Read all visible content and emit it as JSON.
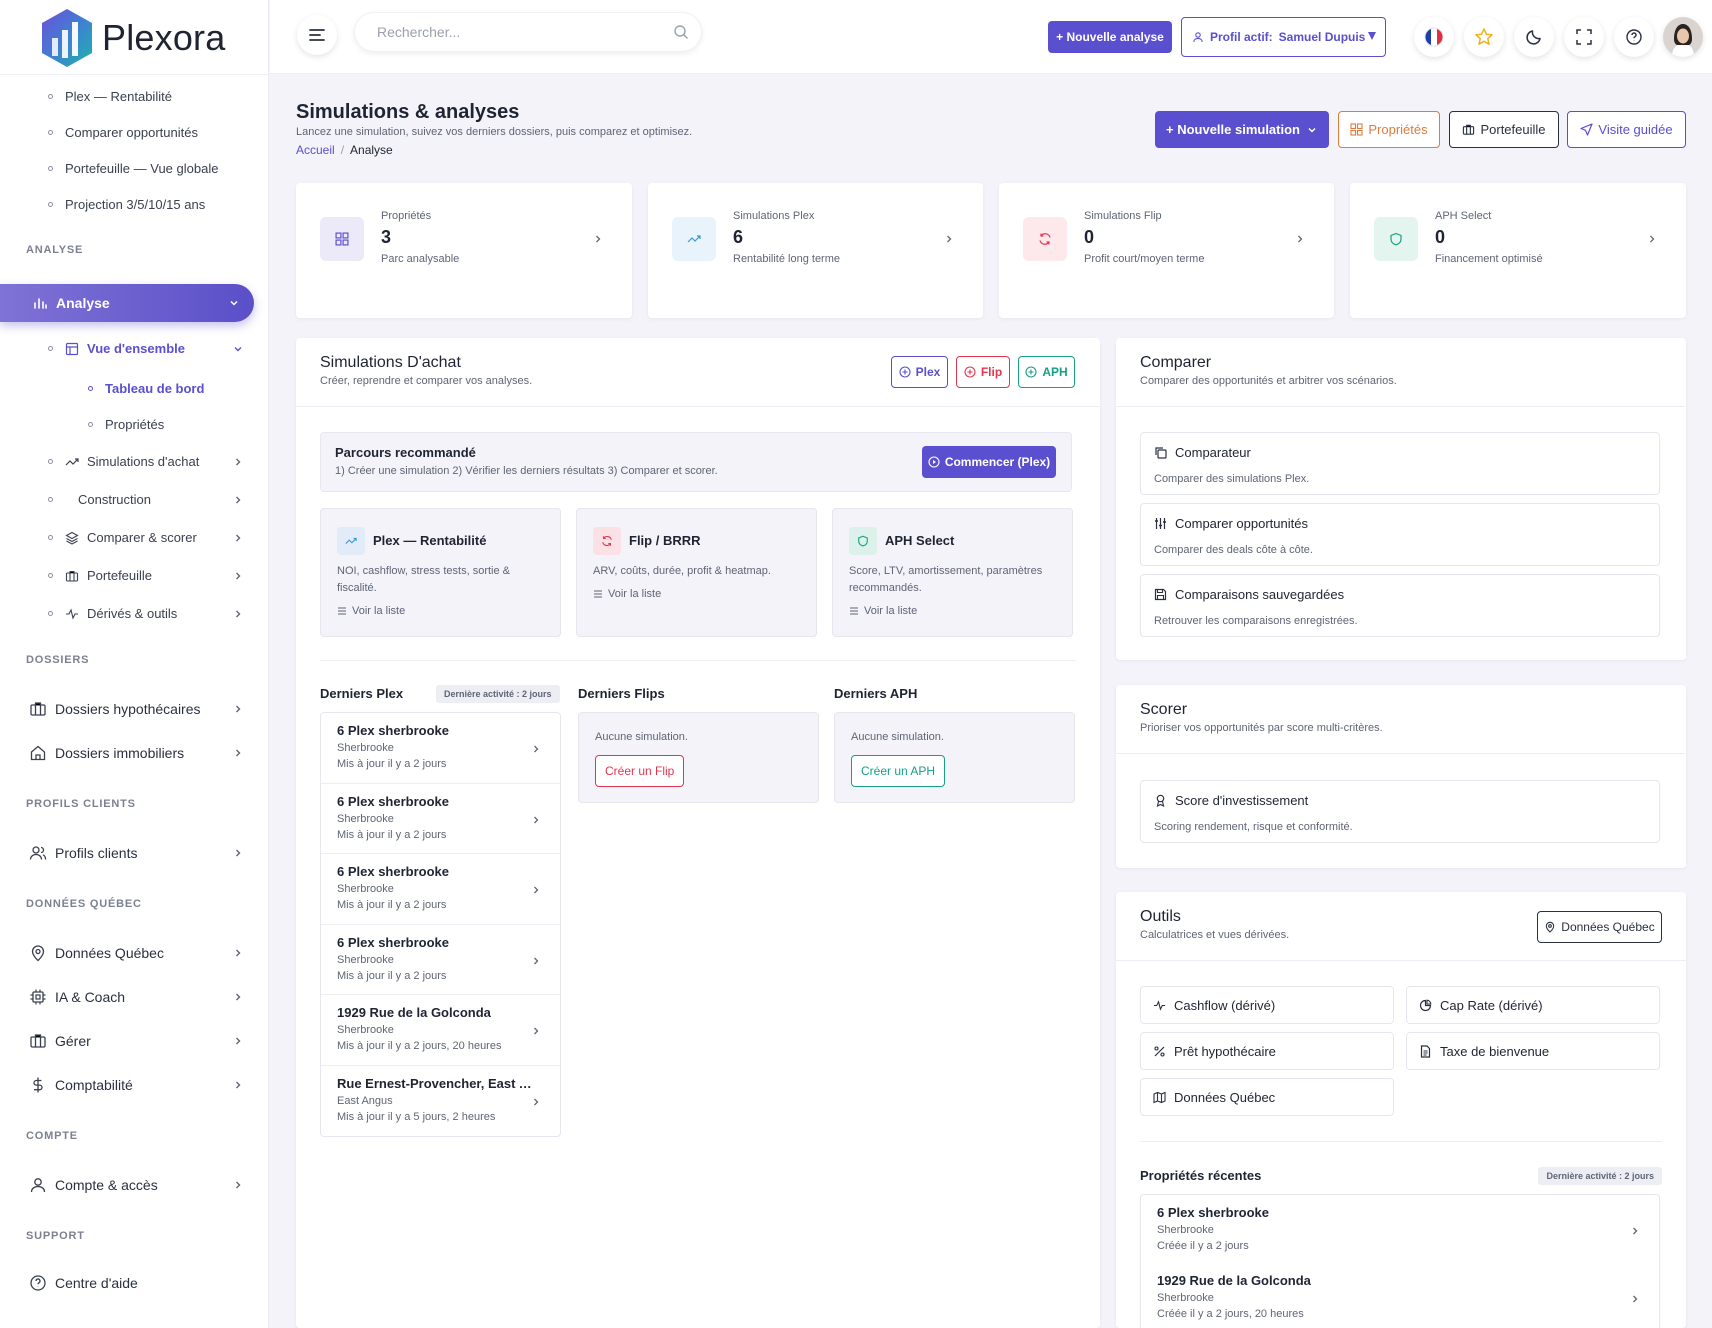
{
  "app": {
    "name": "Plexora"
  },
  "sidebar": {
    "top_items": [
      "Plex — Rentabilité",
      "Comparer opportunités",
      "Portefeuille — Vue globale",
      "Projection 3/5/10/15 ans"
    ],
    "sections": {
      "analyse": "ANALYSE",
      "dossiers": "DOSSIERS",
      "profils": "PROFILS CLIENTS",
      "donnees": "DONNÉES QUÉBEC",
      "compte": "COMPTE",
      "support": "SUPPORT"
    },
    "active": "Analyse",
    "analyse_items": {
      "vue": "Vue d'ensemble",
      "tableau": "Tableau de bord",
      "proprietes": "Propriétés",
      "simulations": "Simulations d'achat",
      "construction": "Construction",
      "comparer": "Comparer & scorer",
      "portefeuille": "Portefeuille",
      "derives": "Dérivés & outils"
    },
    "main_items": {
      "hypo": "Dossiers hypothécaires",
      "immo": "Dossiers immobiliers",
      "profils": "Profils clients",
      "donnees": "Données Québec",
      "ia": "IA & Coach",
      "gerer": "Gérer",
      "compta": "Comptabilité",
      "compte": "Compte & accès",
      "aide": "Centre d'aide"
    }
  },
  "topbar": {
    "search_placeholder": "Rechercher...",
    "new_analysis": "+ Nouvelle analyse",
    "profile_label": "Profil actif:",
    "profile_name": "Samuel Dupuis"
  },
  "header": {
    "title": "Simulations & analyses",
    "subtitle": "Lancez une simulation, suivez vos derniers dossiers, puis comparez et optimisez.",
    "breadcrumb": {
      "home": "Accueil",
      "sep": "/",
      "current": "Analyse"
    },
    "actions": {
      "new_sim": "+ Nouvelle simulation",
      "proprietes": "Propriétés",
      "portefeuille": "Portefeuille",
      "visite": "Visite guidée"
    }
  },
  "stats": [
    {
      "label": "Propriétés",
      "value": "3",
      "desc": "Parc analysable"
    },
    {
      "label": "Simulations Plex",
      "value": "6",
      "desc": "Rentabilité long terme"
    },
    {
      "label": "Simulations Flip",
      "value": "0",
      "desc": "Profit court/moyen terme"
    },
    {
      "label": "APH Select",
      "value": "0",
      "desc": "Financement optimisé"
    }
  ],
  "simulations": {
    "title": "Simulations D'achat",
    "subtitle": "Créer, reprendre et comparer vos analyses.",
    "tags": {
      "plex": "Plex",
      "flip": "Flip",
      "aph": "APH"
    },
    "reco": {
      "title": "Parcours recommandé",
      "text": "1) Créer une simulation 2) Vérifier les derniers résultats 3) Comparer et scorer.",
      "button": "Commencer (Plex)"
    },
    "modules": [
      {
        "title": "Plex — Rentabilité",
        "desc": "NOI, cashflow, stress tests, sortie & fiscalité.",
        "link": "Voir la liste"
      },
      {
        "title": "Flip / BRRR",
        "desc": "ARV, coûts, durée, profit & heatmap.",
        "link": "Voir la liste"
      },
      {
        "title": "APH Select",
        "desc": "Score, LTV, amortissement, paramètres recommandés.",
        "link": "Voir la liste"
      }
    ],
    "latest_plex": {
      "title": "Derniers Plex",
      "badge": "Dernière activité : 2 jours",
      "rows": [
        {
          "name": "6 Plex sherbrooke",
          "city": "Sherbrooke",
          "updated": "Mis à jour il y a 2 jours"
        },
        {
          "name": "6 Plex sherbrooke",
          "city": "Sherbrooke",
          "updated": "Mis à jour il y a 2 jours"
        },
        {
          "name": "6 Plex sherbrooke",
          "city": "Sherbrooke",
          "updated": "Mis à jour il y a 2 jours"
        },
        {
          "name": "6 Plex sherbrooke",
          "city": "Sherbrooke",
          "updated": "Mis à jour il y a 2 jours"
        },
        {
          "name": "1929 Rue de la Golconda",
          "city": "Sherbrooke",
          "updated": "Mis à jour il y a 2 jours, 20 heures"
        },
        {
          "name": "Rue Ernest-Provencher, East A...",
          "city": "East Angus",
          "updated": "Mis à jour il y a 5 jours, 2 heures"
        }
      ]
    },
    "latest_flips": {
      "title": "Derniers Flips",
      "empty": "Aucune simulation.",
      "button": "Créer un Flip"
    },
    "latest_aph": {
      "title": "Derniers APH",
      "empty": "Aucune simulation.",
      "button": "Créer un APH"
    }
  },
  "comparer": {
    "title": "Comparer",
    "subtitle": "Comparer des opportunités et arbitrer vos scénarios.",
    "items": [
      {
        "title": "Comparateur",
        "desc": "Comparer des simulations Plex."
      },
      {
        "title": "Comparer opportunités",
        "desc": "Comparer des deals côte à côte."
      },
      {
        "title": "Comparaisons sauvegardées",
        "desc": "Retrouver les comparaisons enregistrées."
      }
    ]
  },
  "scorer": {
    "title": "Scorer",
    "subtitle": "Prioriser vos opportunités par score multi-critères.",
    "item": {
      "title": "Score d'investissement",
      "desc": "Scoring rendement, risque et conformité."
    }
  },
  "outils": {
    "title": "Outils",
    "subtitle": "Calculatrices et vues dérivées.",
    "button": "Données Québec",
    "tools": {
      "cashflow": "Cashflow (dérivé)",
      "cap": "Cap Rate (dérivé)",
      "pret": "Prêt hypothécaire",
      "taxe": "Taxe de bienvenue",
      "donnees": "Données Québec"
    },
    "recent": {
      "title": "Propriétés récentes",
      "badge": "Dernière activité : 2 jours",
      "rows": [
        {
          "name": "6 Plex sherbrooke",
          "city": "Sherbrooke",
          "created": "Créée il y a 2 jours"
        },
        {
          "name": "1929 Rue de la Golconda",
          "city": "Sherbrooke",
          "created": "Créée il y a 2 jours, 20 heures"
        }
      ]
    }
  },
  "colors": {
    "accent": "#5a4fcf",
    "flip": "#e0364f",
    "aph": "#16a085",
    "proprietes": "#e07b39"
  }
}
